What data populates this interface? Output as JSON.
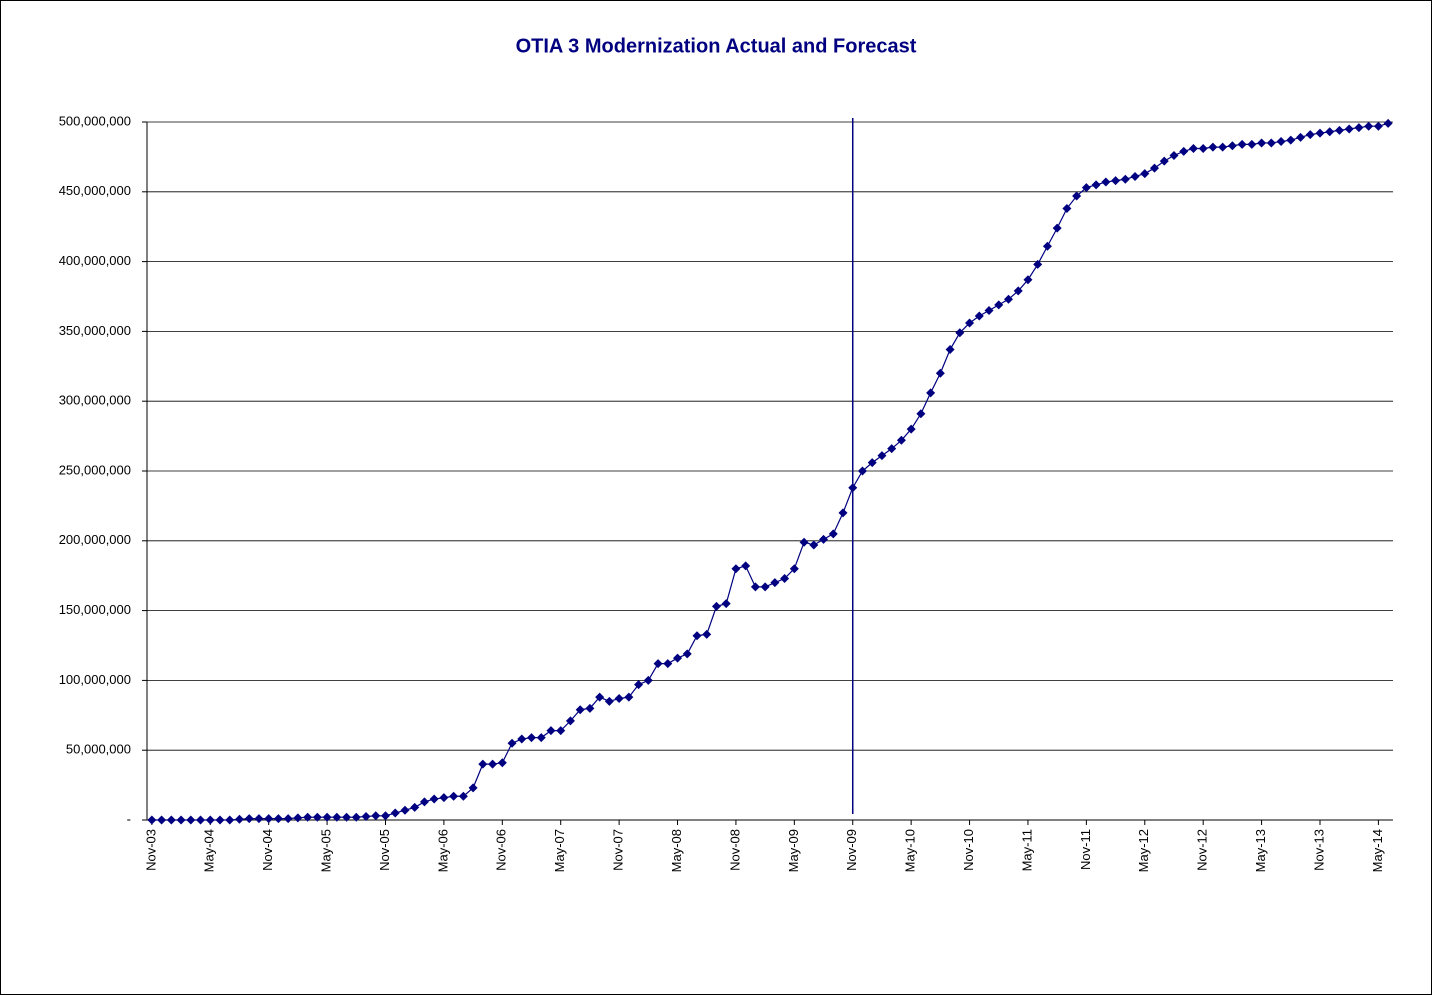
{
  "chart_data": {
    "type": "line",
    "title": "OTIA 3 Modernization Actual and Forecast",
    "categories": [
      "Nov-03",
      null,
      null,
      null,
      null,
      null,
      "May-04",
      null,
      null,
      null,
      null,
      null,
      "Nov-04",
      null,
      null,
      null,
      null,
      null,
      "May-05",
      null,
      null,
      null,
      null,
      null,
      "Nov-05",
      null,
      null,
      null,
      null,
      null,
      "May-06",
      null,
      null,
      null,
      null,
      null,
      "Nov-06",
      null,
      null,
      null,
      null,
      null,
      "May-07",
      null,
      null,
      null,
      null,
      null,
      "Nov-07",
      null,
      null,
      null,
      null,
      null,
      "May-08",
      null,
      null,
      null,
      null,
      null,
      "Nov-08",
      null,
      null,
      null,
      null,
      null,
      "May-09",
      null,
      null,
      null,
      null,
      null,
      "Nov-09",
      null,
      null,
      null,
      null,
      null,
      "May-10",
      null,
      null,
      null,
      null,
      null,
      "Nov-10",
      null,
      null,
      null,
      null,
      null,
      "May-11",
      null,
      null,
      null,
      null,
      null,
      "Nov-11",
      null,
      null,
      null,
      null,
      null,
      "May-12",
      null,
      null,
      null,
      null,
      null,
      "Nov-12",
      null,
      null,
      null,
      null,
      null,
      "May-13",
      null,
      null,
      null,
      null,
      null,
      "Nov-13",
      null,
      null,
      null,
      null,
      null,
      "May-14",
      null
    ],
    "values": [
      0,
      0,
      0,
      0,
      0,
      0,
      0,
      0,
      0,
      500000,
      1000000,
      1000000,
      1000000,
      1000000,
      1000000,
      1500000,
      2000000,
      2000000,
      2000000,
      2000000,
      2000000,
      2000000,
      2500000,
      3000000,
      3000000,
      5000000,
      7000000,
      9000000,
      13000000,
      15000000,
      16000000,
      17000000,
      17000000,
      23000000,
      40000000,
      40000000,
      41000000,
      55000000,
      58000000,
      59000000,
      59000000,
      64000000,
      64000000,
      71000000,
      79000000,
      80000000,
      88000000,
      85000000,
      87000000,
      88000000,
      97000000,
      100000000,
      112000000,
      112000000,
      116000000,
      119000000,
      132000000,
      133000000,
      153000000,
      155000000,
      180000000,
      182000000,
      167000000,
      167000000,
      170000000,
      173000000,
      180000000,
      199000000,
      197000000,
      201000000,
      205000000,
      220000000,
      238000000,
      250000000,
      256000000,
      261000000,
      266000000,
      272000000,
      280000000,
      291000000,
      306000000,
      320000000,
      337000000,
      349000000,
      356000000,
      361000000,
      365000000,
      369000000,
      373000000,
      379000000,
      387000000,
      398000000,
      411000000,
      424000000,
      438000000,
      447000000,
      453000000,
      455000000,
      457000000,
      458000000,
      459000000,
      461000000,
      463000000,
      467000000,
      472000000,
      476000000,
      479000000,
      481000000,
      481000000,
      482000000,
      482000000,
      483000000,
      484000000,
      484000000,
      485000000,
      485000000,
      486000000,
      487000000,
      489000000,
      491000000,
      492000000,
      493000000,
      494000000,
      495000000,
      496000000,
      497000000,
      497000000,
      499000000
    ],
    "color": "#000080",
    "ylim": [
      0,
      500000000
    ],
    "yticks": [
      {
        "value": 0,
        "label": "-"
      },
      {
        "value": 50000000,
        "label": "50,000,000"
      },
      {
        "value": 100000000,
        "label": "100,000,000"
      },
      {
        "value": 150000000,
        "label": "150,000,000"
      },
      {
        "value": 200000000,
        "label": "200,000,000"
      },
      {
        "value": 250000000,
        "label": "250,000,000"
      },
      {
        "value": 300000000,
        "label": "300,000,000"
      },
      {
        "value": 350000000,
        "label": "350,000,000"
      },
      {
        "value": 400000000,
        "label": "400,000,000"
      },
      {
        "value": 450000000,
        "label": "450,000,000"
      },
      {
        "value": 500000000,
        "label": "500,000,000"
      }
    ],
    "grid": true,
    "vline_category": "Nov-09"
  }
}
